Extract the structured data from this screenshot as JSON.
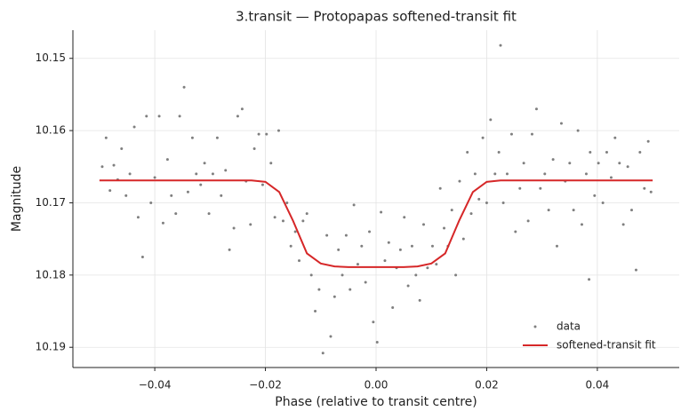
{
  "chart_data": {
    "type": "scatter",
    "title": "3.transit — Protopapas softened-transit fit",
    "x_label": "Phase (relative to transit centre)",
    "y_label": "Magnitude",
    "xlim": [
      -0.0548,
      0.0548
    ],
    "ylim": [
      10.1928,
      10.1461
    ],
    "xticks": [
      {
        "value": -0.04,
        "label": "−0.04"
      },
      {
        "value": -0.02,
        "label": "−0.02"
      },
      {
        "value": 0,
        "label": "0.00"
      },
      {
        "value": 0.02,
        "label": "0.02"
      },
      {
        "value": 0.04,
        "label": "0.04"
      }
    ],
    "yticks": [
      10.15,
      10.16,
      10.17,
      10.18,
      10.19
    ],
    "grid": true,
    "legend": "lower right",
    "series": [
      {
        "name": "data",
        "type": "scatter",
        "color": "#7f7f7f",
        "x": [
          -0.0495,
          -0.0488,
          -0.0481,
          -0.0474,
          -0.0467,
          -0.046,
          -0.0452,
          -0.0445,
          -0.0437,
          -0.043,
          -0.0422,
          -0.0415,
          -0.0407,
          -0.04,
          -0.0392,
          -0.0385,
          -0.0377,
          -0.037,
          -0.0362,
          -0.0355,
          -0.0347,
          -0.034,
          -0.0332,
          -0.0325,
          -0.0317,
          -0.031,
          -0.0302,
          -0.0295,
          -0.0287,
          -0.028,
          -0.0272,
          -0.0265,
          -0.0257,
          -0.025,
          -0.0242,
          -0.0235,
          -0.0227,
          -0.022,
          -0.0212,
          -0.0205,
          -0.0198,
          -0.019,
          -0.0183,
          -0.0176,
          -0.0168,
          -0.0161,
          -0.0154,
          -0.0146,
          -0.0139,
          -0.0132,
          -0.0125,
          -0.0117,
          -0.011,
          -0.0103,
          -0.0096,
          -0.0089,
          -0.0082,
          -0.0075,
          -0.0068,
          -0.0061,
          -0.0054,
          -0.0047,
          -0.004,
          -0.0033,
          -0.0026,
          -0.0019,
          -0.0012,
          -0.0005,
          0.0002,
          0.0009,
          0.0016,
          0.0023,
          0.003,
          0.0037,
          0.0044,
          0.0051,
          0.0058,
          0.0065,
          0.0072,
          0.0079,
          0.0086,
          0.0093,
          0.0102,
          0.0109,
          0.0116,
          0.0123,
          0.013,
          0.0137,
          0.0144,
          0.0151,
          0.0158,
          0.0165,
          0.0172,
          0.0179,
          0.0186,
          0.0193,
          0.02,
          0.0207,
          0.0215,
          0.0222,
          0.0225,
          0.023,
          0.0237,
          0.0245,
          0.0252,
          0.026,
          0.0267,
          0.0275,
          0.0282,
          0.029,
          0.0297,
          0.0305,
          0.0312,
          0.032,
          0.0327,
          0.0335,
          0.0342,
          0.035,
          0.0357,
          0.0365,
          0.0372,
          0.038,
          0.0385,
          0.0387,
          0.0395,
          0.0402,
          0.041,
          0.0417,
          0.0425,
          0.0432,
          0.044,
          0.0447,
          0.0455,
          0.0462,
          0.047,
          0.0477,
          0.0485,
          0.0492,
          0.0497
        ],
        "values": [
          10.165,
          10.161,
          10.1683,
          10.1648,
          10.1668,
          10.1625,
          10.169,
          10.166,
          10.1595,
          10.172,
          10.1775,
          10.158,
          10.17,
          10.1665,
          10.158,
          10.1728,
          10.164,
          10.169,
          10.1715,
          10.158,
          10.154,
          10.1685,
          10.161,
          10.166,
          10.1675,
          10.1645,
          10.1715,
          10.166,
          10.161,
          10.169,
          10.1655,
          10.1765,
          10.1735,
          10.158,
          10.157,
          10.167,
          10.173,
          10.1625,
          10.1605,
          10.1675,
          10.1605,
          10.1645,
          10.172,
          10.16,
          10.1725,
          10.17,
          10.176,
          10.174,
          10.178,
          10.1725,
          10.1715,
          10.18,
          10.185,
          10.182,
          10.1908,
          10.1745,
          10.1885,
          10.183,
          10.1765,
          10.18,
          10.1745,
          10.182,
          10.1703,
          10.1785,
          10.176,
          10.181,
          10.174,
          10.1865,
          10.1893,
          10.1713,
          10.178,
          10.1755,
          10.1845,
          10.179,
          10.1765,
          10.172,
          10.1815,
          10.176,
          10.18,
          10.1835,
          10.173,
          10.179,
          10.176,
          10.1785,
          10.168,
          10.1735,
          10.176,
          10.171,
          10.18,
          10.167,
          10.175,
          10.163,
          10.1715,
          10.166,
          10.1695,
          10.161,
          10.17,
          10.1585,
          10.166,
          10.163,
          10.1482,
          10.17,
          10.166,
          10.1605,
          10.174,
          10.168,
          10.1645,
          10.1725,
          10.1605,
          10.157,
          10.168,
          10.166,
          10.171,
          10.164,
          10.176,
          10.159,
          10.167,
          10.1645,
          10.171,
          10.16,
          10.173,
          10.166,
          10.1806,
          10.163,
          10.169,
          10.1645,
          10.17,
          10.163,
          10.1665,
          10.161,
          10.1645,
          10.173,
          10.165,
          10.171,
          10.1793,
          10.163,
          10.168,
          10.1615,
          10.1685
        ]
      },
      {
        "name": "softened-transit fit",
        "type": "line",
        "color": "#d62728",
        "x": [
          -0.05,
          -0.045,
          -0.04,
          -0.035,
          -0.03,
          -0.025,
          -0.0225,
          -0.02,
          -0.0175,
          -0.015,
          -0.0125,
          -0.01,
          -0.0075,
          -0.005,
          0,
          0.005,
          0.0075,
          0.01,
          0.0125,
          0.015,
          0.0175,
          0.02,
          0.0225,
          0.025,
          0.03,
          0.035,
          0.04,
          0.045,
          0.05
        ],
        "values": [
          10.1669,
          10.1669,
          10.1669,
          10.1669,
          10.1669,
          10.1669,
          10.1669,
          10.1671,
          10.1685,
          10.1725,
          10.177,
          10.1784,
          10.1788,
          10.1789,
          10.1789,
          10.1789,
          10.1788,
          10.1784,
          10.177,
          10.1725,
          10.1685,
          10.1671,
          10.1669,
          10.1669,
          10.1669,
          10.1669,
          10.1669,
          10.1669,
          10.1669
        ]
      }
    ]
  }
}
